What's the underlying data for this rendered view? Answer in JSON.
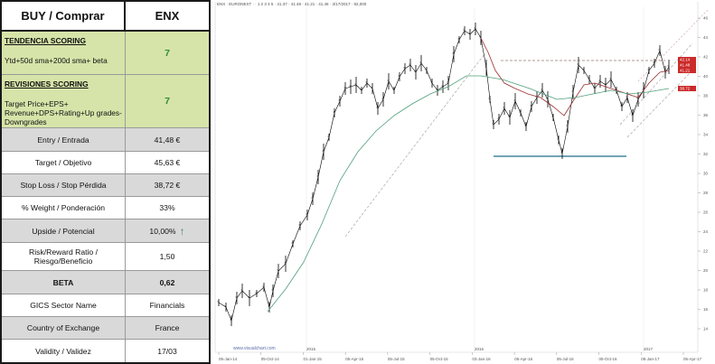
{
  "header": {
    "title": "BUY / Comprar",
    "ticker": "ENX"
  },
  "scoring": [
    {
      "title": "TENDENCIA SCORING",
      "description": "Ytd+50d sma+200d  sma+ beta",
      "value": "7"
    },
    {
      "title": "REVISIONES SCORING",
      "description": "Target Price+EPS+ Revenue+DPS+Rating+Up grades-Downgrades",
      "value": "7"
    }
  ],
  "rows": [
    {
      "label": "Entry / Entrada",
      "value": "41,48 €"
    },
    {
      "label": "Target / Objetivo",
      "value": "45,63 €"
    },
    {
      "label": "Stop Loss / Stop Pérdida",
      "value": "38,72 €"
    },
    {
      "label": "% Weight / Ponderación",
      "value": "33%"
    },
    {
      "label": "Upside / Potencial",
      "value": "10,00%",
      "icon": "up-arrow-icon",
      "icon_color": "#3e8f5c"
    },
    {
      "label": "Risk/Reward  Ratio / Riesgo/Beneficio",
      "value": "1,50"
    },
    {
      "label": "BETA",
      "value": "0,62"
    },
    {
      "label": "GICS Sector Name",
      "value": "Financials"
    },
    {
      "label": "Country of Exchange",
      "value": "France"
    },
    {
      "label": "Validity / Validez",
      "value": "17/03"
    }
  ],
  "chart": {
    "ticker_line": "ENX · EURONEXT · · 1 2 3 4 5 · 41.37 · 41.48 · 41.21 · 41.48 · 3/17/2017 · 82,000",
    "watermark": "www.visualchart.com",
    "year_labels": [
      "2015",
      "2016",
      "2017"
    ],
    "x_tick_labels": [
      "05-Jan-14",
      "05-Oct-14",
      "01-Jan-15",
      "05-Apr-15",
      "05-Jul-15",
      "05-Oct-15",
      "03-Jan-16",
      "05-Apr-16",
      "05-Jul-16",
      "05-Oct-16",
      "05-Jan-17",
      "05-Apr-17"
    ],
    "y_tick_labels": [
      "46",
      "44",
      "42",
      "40",
      "38",
      "36",
      "34",
      "32",
      "30",
      "28",
      "26",
      "24",
      "22",
      "20",
      "18",
      "16",
      "14"
    ],
    "price_tags": [
      "42.14",
      "41.48",
      "41.21",
      "38.72"
    ],
    "colors": {
      "price": "#000000",
      "sma50": "#9c2e2e",
      "sma200": "#4f9e7a",
      "support": "#1d6e86",
      "resistance": "#b49a9a",
      "channel": "#9a9a9a",
      "tag": "#cc2a2a"
    }
  }
}
